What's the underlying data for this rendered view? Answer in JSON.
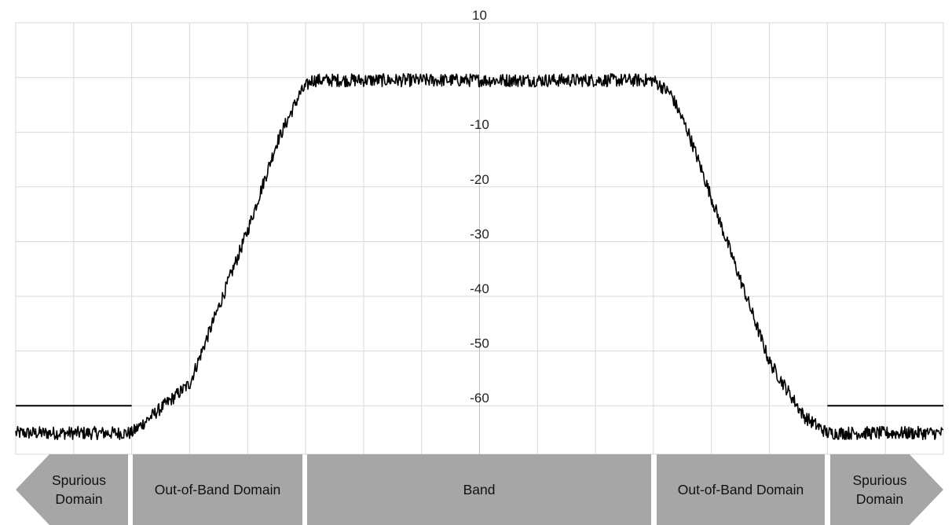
{
  "chart_data": {
    "type": "line",
    "title": "",
    "xlabel": "",
    "ylabel": "",
    "xlim": [
      0,
      16
    ],
    "ylim": [
      -70,
      10
    ],
    "y_ticks": [
      10,
      -10,
      -20,
      -30,
      -40,
      -50,
      -60
    ],
    "grid": true,
    "series": [
      {
        "style": "noisy",
        "color": "#000000",
        "x": [
          0,
          2.0,
          3.0,
          3.5,
          4.0,
          4.5,
          4.9,
          5.1,
          11.0,
          11.3,
          11.6,
          12.0,
          12.5,
          13.0,
          13.6,
          14.0,
          16
        ],
        "y": [
          -65,
          -65,
          -56,
          -42,
          -28,
          -12,
          -3,
          -0.5,
          -0.5,
          -3,
          -10,
          -22,
          -37,
          -52,
          -62,
          -65,
          -65
        ]
      }
    ],
    "limit_lines": [
      {
        "x": [
          0,
          2.0
        ],
        "y": -60
      },
      {
        "x": [
          14.0,
          16
        ],
        "y": -60
      }
    ]
  },
  "regions": [
    {
      "name": "spurious-left",
      "label_lines": [
        "Spurious",
        "Domain"
      ]
    },
    {
      "name": "oob-left",
      "label_lines": [
        "Out-of-Band Domain"
      ]
    },
    {
      "name": "band",
      "label_lines": [
        "Band"
      ]
    },
    {
      "name": "oob-right",
      "label_lines": [
        "Out-of-Band Domain"
      ]
    },
    {
      "name": "spurious-right",
      "label_lines": [
        "Spurious",
        "Domain"
      ]
    }
  ],
  "colors": {
    "grid": "#d9d9d9",
    "line": "#000000",
    "region_fill": "#a6a6a6"
  }
}
